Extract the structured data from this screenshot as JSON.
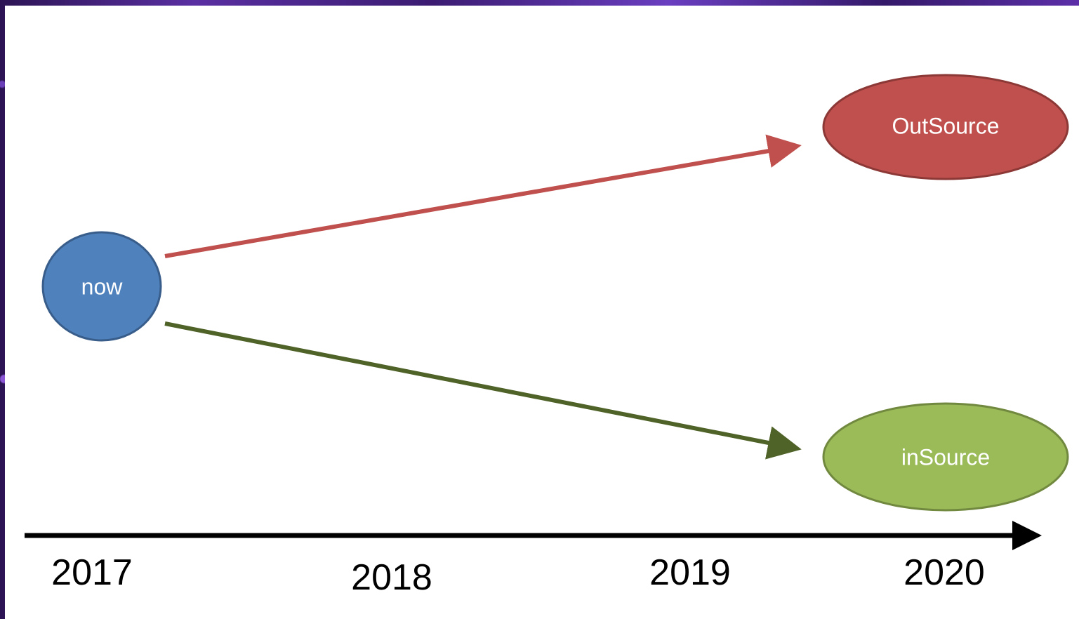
{
  "nodes": {
    "now": {
      "label": "now",
      "fill": "#4f81bd",
      "stroke": "#385d8a"
    },
    "outsource": {
      "label": "OutSource",
      "fill": "#c0504d",
      "stroke": "#8c3836"
    },
    "insource": {
      "label": "inSource",
      "fill": "#9bbb59",
      "stroke": "#71893f"
    }
  },
  "edges": [
    {
      "from": "now",
      "to": "outsource",
      "color": "#c0504d"
    },
    {
      "from": "now",
      "to": "insource",
      "color": "#4f6228"
    }
  ],
  "timeline": {
    "years": [
      "2017",
      "2018",
      "2019",
      "2020"
    ],
    "color": "#000000"
  }
}
